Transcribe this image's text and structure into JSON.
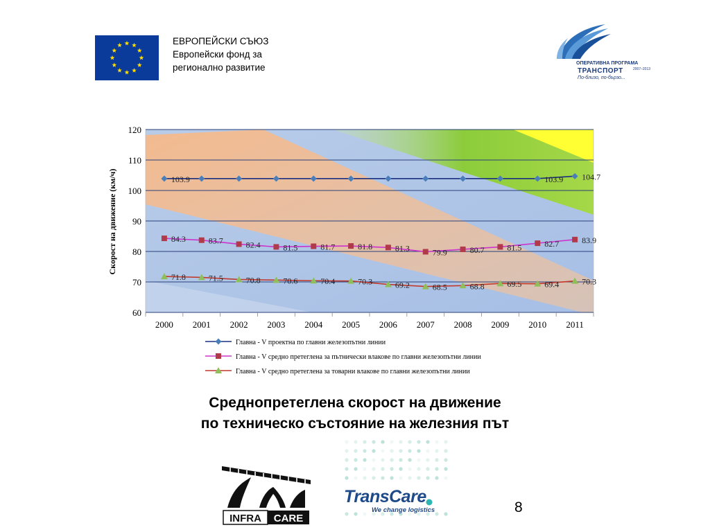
{
  "header": {
    "eu_line1": "ЕВРОПЕЙСКИ СЪЮЗ",
    "eu_line2": "Европейски фонд за",
    "eu_line3": "регионално развитие",
    "op_line1": "ОПЕРАТИВНА ПРОГРАМА",
    "op_line2": "ТРАНСПОРТ",
    "op_years": "2007–2013",
    "op_slogan": "По-близо, по-бързо..."
  },
  "chart_data": {
    "type": "line",
    "ylabel": "Скорост на движение (км/ч)",
    "xlabel": "",
    "ylim": [
      60,
      120
    ],
    "yticks": [
      60,
      70,
      80,
      90,
      100,
      110,
      120
    ],
    "categories": [
      "2000",
      "2001",
      "2002",
      "2003",
      "2004",
      "2005",
      "2006",
      "2007",
      "2008",
      "2009",
      "2010",
      "2011"
    ],
    "legend_position": "bottom",
    "grid": true,
    "series": [
      {
        "name": "Главна - V проектна по главни железопътни линии",
        "color": "#1a2f80",
        "marker_color": "#4a7ebb",
        "marker": "diamond",
        "values": [
          103.9,
          103.9,
          103.9,
          103.9,
          103.9,
          103.9,
          103.9,
          103.9,
          103.9,
          103.9,
          103.9,
          104.7
        ],
        "labels": [
          "103.9",
          "",
          "",
          "",
          "",
          "",
          "",
          "",
          "",
          "",
          "103.9",
          "104.7"
        ]
      },
      {
        "name": "Главна - V средно претеглена за пътнически влакове по главни железопътни линии",
        "color": "#cc33cc",
        "marker_color": "#b03a4a",
        "marker": "square",
        "values": [
          84.3,
          83.7,
          82.4,
          81.5,
          81.7,
          81.8,
          81.3,
          79.9,
          80.7,
          81.5,
          82.7,
          83.9
        ],
        "labels": [
          "84.3",
          "83.7",
          "82.4",
          "81.5",
          "81.7",
          "81.8",
          "81.3",
          "79.9",
          "80.7",
          "81.5",
          "82.7",
          "83.9"
        ]
      },
      {
        "name": "Главна - V средно претеглена за товарни влакове по главни железопътни линии",
        "color": "#c0392b",
        "marker_color": "#8fbf5a",
        "marker": "triangle",
        "values": [
          71.8,
          71.5,
          70.8,
          70.6,
          70.4,
          70.3,
          69.2,
          68.5,
          68.8,
          69.5,
          69.4,
          70.3
        ],
        "labels": [
          "71.8",
          "71.5",
          "70.8",
          "70.6",
          "70.4",
          "70.3",
          "69.2",
          "68.5",
          "68.8",
          "69.5",
          "69.4",
          "70.3"
        ]
      }
    ]
  },
  "caption": {
    "line1": "Среднопретеглена скорост на движение",
    "line2": "по техническо състояние на железния път"
  },
  "footer": {
    "infracare_left": "INFRA",
    "infracare_right": "CARE",
    "transcare_name": "TransCare",
    "transcare_tagline": "We change logistics",
    "page_number": "8"
  },
  "colors": {
    "eu_blue": "#0a3a9a",
    "eu_star": "#ffdd00",
    "plot_blue": "#a9c1e8",
    "band_orange": "#f6b98a",
    "band_green": "#8ccc3a",
    "band_yellow": "#ffff33",
    "op_blue": "#1a3a7a",
    "transcare_blue": "#1f4a8a"
  }
}
